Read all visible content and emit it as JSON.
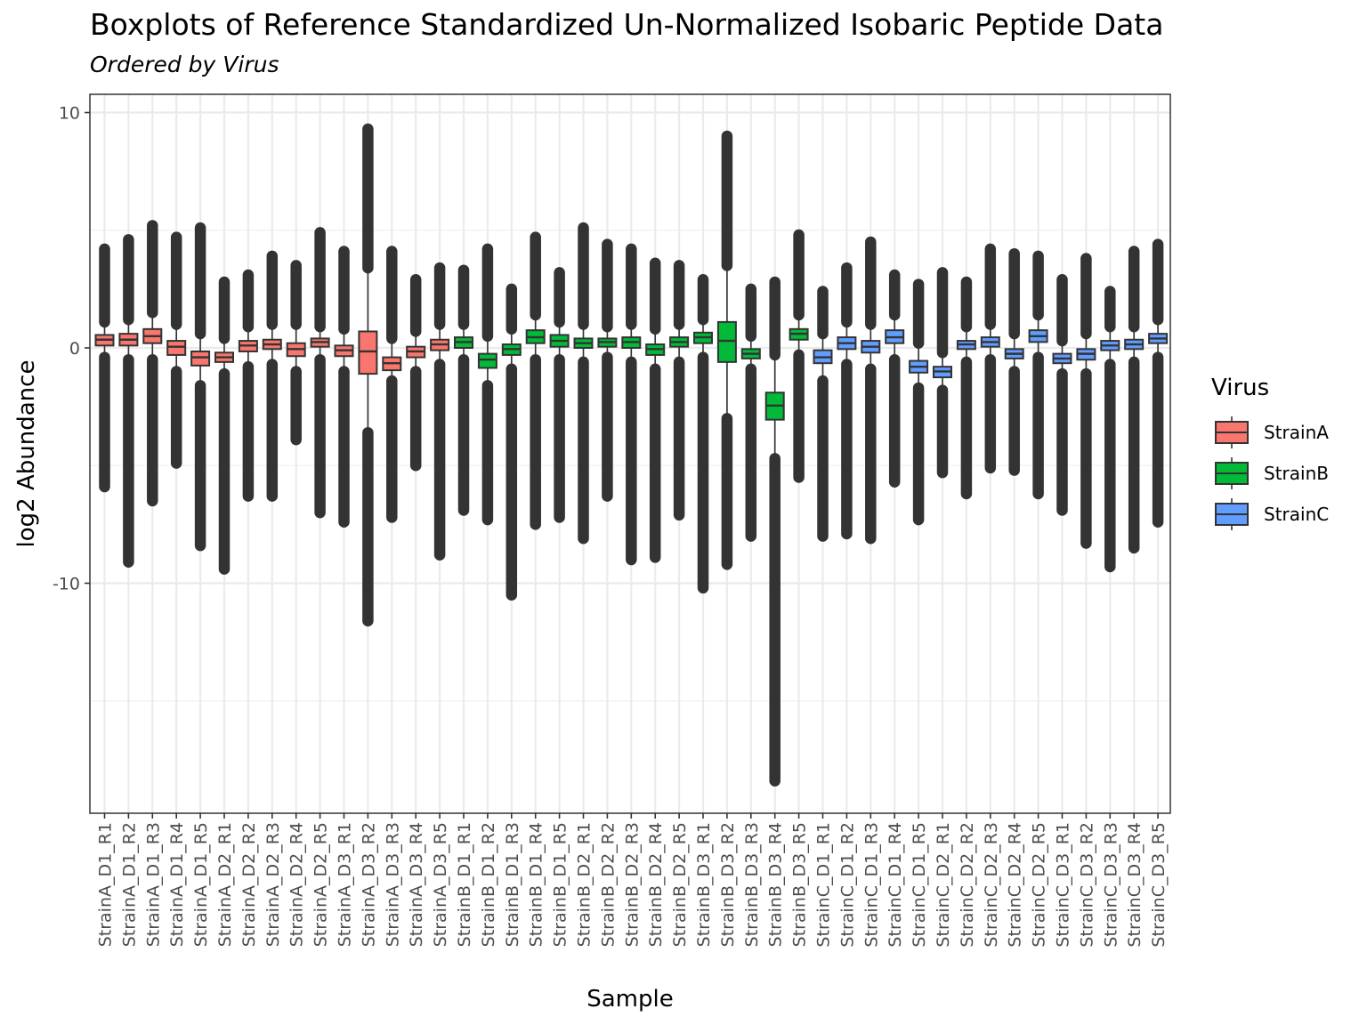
{
  "chart_data": {
    "type": "boxplot",
    "title": "Boxplots of Reference Standardized Un-Normalized Isobaric Peptide Data",
    "subtitle": "Ordered by  Virus",
    "xlabel": "Sample",
    "ylabel": "log2 Abundance",
    "ylim": [
      -19.5,
      10.7
    ],
    "y_ticks": [
      10,
      0,
      -10
    ],
    "y_tick_labels": [
      "10",
      "0",
      "-10"
    ],
    "grid": true,
    "legend": {
      "title": "Virus",
      "position": "right",
      "entries": [
        {
          "label": "StrainA",
          "color": "#F8766D"
        },
        {
          "label": "StrainB",
          "color": "#00BA38"
        },
        {
          "label": "StrainC",
          "color": "#619CFF"
        }
      ]
    },
    "groups": [
      {
        "sample": "StrainA_D1_R1",
        "virus": "StrainA",
        "q1": 0.1,
        "median": 0.35,
        "q3": 0.55,
        "whisker_low": -0.4,
        "whisker_high": 1.1,
        "min": -5.9,
        "max": 4.2
      },
      {
        "sample": "StrainA_D1_R2",
        "virus": "StrainA",
        "q1": 0.1,
        "median": 0.35,
        "q3": 0.6,
        "whisker_low": -0.5,
        "whisker_high": 1.2,
        "min": -9.1,
        "max": 4.6
      },
      {
        "sample": "StrainA_D1_R3",
        "virus": "StrainA",
        "q1": 0.2,
        "median": 0.5,
        "q3": 0.8,
        "whisker_low": -0.5,
        "whisker_high": 1.5,
        "min": -6.5,
        "max": 5.2
      },
      {
        "sample": "StrainA_D1_R4",
        "virus": "StrainA",
        "q1": -0.3,
        "median": 0.05,
        "q3": 0.3,
        "whisker_low": -1.0,
        "whisker_high": 1.0,
        "min": -4.9,
        "max": 4.7
      },
      {
        "sample": "StrainA_D1_R5",
        "virus": "StrainA",
        "q1": -0.75,
        "median": -0.4,
        "q3": -0.15,
        "whisker_low": -1.6,
        "whisker_high": 0.6,
        "min": -8.4,
        "max": 5.1
      },
      {
        "sample": "StrainA_D2_R1",
        "virus": "StrainA",
        "q1": -0.6,
        "median": -0.4,
        "q3": -0.2,
        "whisker_low": -1.1,
        "whisker_high": 0.4,
        "min": -9.4,
        "max": 2.8
      },
      {
        "sample": "StrainA_D2_R2",
        "virus": "StrainA",
        "q1": -0.15,
        "median": 0.1,
        "q3": 0.3,
        "whisker_low": -0.8,
        "whisker_high": 0.9,
        "min": -6.3,
        "max": 3.1
      },
      {
        "sample": "StrainA_D2_R3",
        "virus": "StrainA",
        "q1": -0.05,
        "median": 0.15,
        "q3": 0.35,
        "whisker_low": -0.7,
        "whisker_high": 1.0,
        "min": -6.3,
        "max": 3.9
      },
      {
        "sample": "StrainA_D2_R4",
        "virus": "StrainA",
        "q1": -0.35,
        "median": -0.05,
        "q3": 0.2,
        "whisker_low": -1.0,
        "whisker_high": 1.0,
        "min": -3.9,
        "max": 3.5
      },
      {
        "sample": "StrainA_D2_R5",
        "virus": "StrainA",
        "q1": 0.05,
        "median": 0.25,
        "q3": 0.4,
        "whisker_low": -0.5,
        "whisker_high": 0.9,
        "min": -7.0,
        "max": 4.9
      },
      {
        "sample": "StrainA_D3_R1",
        "virus": "StrainA",
        "q1": -0.35,
        "median": -0.1,
        "q3": 0.1,
        "whisker_low": -1.0,
        "whisker_high": 0.8,
        "min": -7.4,
        "max": 4.1
      },
      {
        "sample": "StrainA_D3_R2",
        "virus": "StrainA",
        "q1": -1.1,
        "median": -0.15,
        "q3": 0.7,
        "whisker_low": -3.6,
        "whisker_high": 3.4,
        "min": -11.6,
        "max": 9.3
      },
      {
        "sample": "StrainA_D3_R3",
        "virus": "StrainA",
        "q1": -0.95,
        "median": -0.65,
        "q3": -0.4,
        "whisker_low": -1.4,
        "whisker_high": 0.4,
        "min": -7.2,
        "max": 4.1
      },
      {
        "sample": "StrainA_D3_R4",
        "virus": "StrainA",
        "q1": -0.4,
        "median": -0.15,
        "q3": 0.05,
        "whisker_low": -1.0,
        "whisker_high": 0.7,
        "min": -5.0,
        "max": 2.9
      },
      {
        "sample": "StrainA_D3_R5",
        "virus": "StrainA",
        "q1": -0.1,
        "median": 0.15,
        "q3": 0.35,
        "whisker_low": -0.7,
        "whisker_high": 1.0,
        "min": -8.8,
        "max": 3.4
      },
      {
        "sample": "StrainB_D1_R1",
        "virus": "StrainB",
        "q1": 0.0,
        "median": 0.25,
        "q3": 0.45,
        "whisker_low": -0.5,
        "whisker_high": 1.0,
        "min": -6.9,
        "max": 3.3
      },
      {
        "sample": "StrainB_D1_R2",
        "virus": "StrainB",
        "q1": -0.85,
        "median": -0.5,
        "q3": -0.25,
        "whisker_low": -1.6,
        "whisker_high": 0.5,
        "min": -7.3,
        "max": 4.2
      },
      {
        "sample": "StrainB_D1_R3",
        "virus": "StrainB",
        "q1": -0.3,
        "median": -0.05,
        "q3": 0.15,
        "whisker_low": -0.9,
        "whisker_high": 0.8,
        "min": -10.5,
        "max": 2.5
      },
      {
        "sample": "StrainB_D1_R4",
        "virus": "StrainB",
        "q1": 0.2,
        "median": 0.45,
        "q3": 0.75,
        "whisker_low": -0.5,
        "whisker_high": 1.4,
        "min": -7.5,
        "max": 4.7
      },
      {
        "sample": "StrainB_D1_R5",
        "virus": "StrainB",
        "q1": 0.05,
        "median": 0.3,
        "q3": 0.55,
        "whisker_low": -0.5,
        "whisker_high": 1.1,
        "min": -7.2,
        "max": 3.2
      },
      {
        "sample": "StrainB_D2_R1",
        "virus": "StrainB",
        "q1": 0.0,
        "median": 0.2,
        "q3": 0.4,
        "whisker_low": -0.6,
        "whisker_high": 1.0,
        "min": -8.1,
        "max": 5.1
      },
      {
        "sample": "StrainB_D2_R2",
        "virus": "StrainB",
        "q1": 0.05,
        "median": 0.25,
        "q3": 0.4,
        "whisker_low": -0.4,
        "whisker_high": 0.9,
        "min": -6.3,
        "max": 4.4
      },
      {
        "sample": "StrainB_D2_R3",
        "virus": "StrainB",
        "q1": 0.0,
        "median": 0.25,
        "q3": 0.45,
        "whisker_low": -0.6,
        "whisker_high": 1.0,
        "min": -9.0,
        "max": 4.2
      },
      {
        "sample": "StrainB_D2_R4",
        "virus": "StrainB",
        "q1": -0.3,
        "median": -0.05,
        "q3": 0.15,
        "whisker_low": -0.9,
        "whisker_high": 0.8,
        "min": -8.9,
        "max": 3.6
      },
      {
        "sample": "StrainB_D2_R5",
        "virus": "StrainB",
        "q1": 0.05,
        "median": 0.25,
        "q3": 0.45,
        "whisker_low": -0.6,
        "whisker_high": 1.0,
        "min": -7.1,
        "max": 3.5
      },
      {
        "sample": "StrainB_D3_R1",
        "virus": "StrainB",
        "q1": 0.2,
        "median": 0.45,
        "q3": 0.65,
        "whisker_low": -0.4,
        "whisker_high": 1.2,
        "min": -10.2,
        "max": 2.9
      },
      {
        "sample": "StrainB_D3_R2",
        "virus": "StrainB",
        "q1": -0.6,
        "median": 0.3,
        "q3": 1.1,
        "whisker_low": -3.0,
        "whisker_high": 3.5,
        "min": -9.2,
        "max": 9.0
      },
      {
        "sample": "StrainB_D3_R3",
        "virus": "StrainB",
        "q1": -0.45,
        "median": -0.25,
        "q3": -0.05,
        "whisker_low": -0.9,
        "whisker_high": 0.5,
        "min": -8.0,
        "max": 2.5
      },
      {
        "sample": "StrainB_D3_R4",
        "virus": "StrainB",
        "q1": -3.05,
        "median": -2.45,
        "q3": -1.9,
        "whisker_low": -4.7,
        "whisker_high": -0.3,
        "min": -18.4,
        "max": 2.8
      },
      {
        "sample": "StrainB_D3_R5",
        "virus": "StrainB",
        "q1": 0.35,
        "median": 0.6,
        "q3": 0.8,
        "whisker_low": -0.3,
        "whisker_high": 1.4,
        "min": -5.5,
        "max": 4.8
      },
      {
        "sample": "StrainC_D1_R1",
        "virus": "StrainC",
        "q1": -0.65,
        "median": -0.4,
        "q3": -0.1,
        "whisker_low": -1.4,
        "whisker_high": 0.6,
        "min": -8.0,
        "max": 2.4
      },
      {
        "sample": "StrainC_D1_R2",
        "virus": "StrainC",
        "q1": -0.05,
        "median": 0.2,
        "q3": 0.45,
        "whisker_low": -0.7,
        "whisker_high": 1.1,
        "min": -7.9,
        "max": 3.4
      },
      {
        "sample": "StrainC_D1_R3",
        "virus": "StrainC",
        "q1": -0.2,
        "median": 0.05,
        "q3": 0.3,
        "whisker_low": -0.9,
        "whisker_high": 1.0,
        "min": -8.1,
        "max": 4.5
      },
      {
        "sample": "StrainC_D1_R4",
        "virus": "StrainC",
        "q1": 0.2,
        "median": 0.45,
        "q3": 0.75,
        "whisker_low": -0.5,
        "whisker_high": 1.4,
        "min": -5.7,
        "max": 3.1
      },
      {
        "sample": "StrainC_D1_R5",
        "virus": "StrainC",
        "q1": -1.05,
        "median": -0.8,
        "q3": -0.55,
        "whisker_low": -1.7,
        "whisker_high": 0.2,
        "min": -7.3,
        "max": 2.7
      },
      {
        "sample": "StrainC_D2_R1",
        "virus": "StrainC",
        "q1": -1.25,
        "median": -1.0,
        "q3": -0.8,
        "whisker_low": -1.8,
        "whisker_high": -0.2,
        "min": -5.3,
        "max": 3.2
      },
      {
        "sample": "StrainC_D2_R2",
        "virus": "StrainC",
        "q1": -0.05,
        "median": 0.15,
        "q3": 0.3,
        "whisker_low": -0.6,
        "whisker_high": 0.9,
        "min": -6.2,
        "max": 2.8
      },
      {
        "sample": "StrainC_D2_R3",
        "virus": "StrainC",
        "q1": 0.05,
        "median": 0.25,
        "q3": 0.45,
        "whisker_low": -0.5,
        "whisker_high": 1.0,
        "min": -5.1,
        "max": 4.2
      },
      {
        "sample": "StrainC_D2_R4",
        "virus": "StrainC",
        "q1": -0.45,
        "median": -0.25,
        "q3": -0.05,
        "whisker_low": -1.0,
        "whisker_high": 0.6,
        "min": -5.2,
        "max": 4.0
      },
      {
        "sample": "StrainC_D2_R5",
        "virus": "StrainC",
        "q1": 0.25,
        "median": 0.5,
        "q3": 0.75,
        "whisker_low": -0.4,
        "whisker_high": 1.4,
        "min": -6.2,
        "max": 3.9
      },
      {
        "sample": "StrainC_D3_R1",
        "virus": "StrainC",
        "q1": -0.65,
        "median": -0.45,
        "q3": -0.25,
        "whisker_low": -1.1,
        "whisker_high": 0.3,
        "min": -6.9,
        "max": 2.9
      },
      {
        "sample": "StrainC_D3_R2",
        "virus": "StrainC",
        "q1": -0.5,
        "median": -0.25,
        "q3": -0.05,
        "whisker_low": -1.1,
        "whisker_high": 0.6,
        "min": -8.3,
        "max": 3.8
      },
      {
        "sample": "StrainC_D3_R3",
        "virus": "StrainC",
        "q1": -0.1,
        "median": 0.1,
        "q3": 0.3,
        "whisker_low": -0.7,
        "whisker_high": 0.9,
        "min": -9.3,
        "max": 2.4
      },
      {
        "sample": "StrainC_D3_R4",
        "virus": "StrainC",
        "q1": -0.05,
        "median": 0.15,
        "q3": 0.35,
        "whisker_low": -0.6,
        "whisker_high": 0.9,
        "min": -8.5,
        "max": 4.1
      },
      {
        "sample": "StrainC_D3_R5",
        "virus": "StrainC",
        "q1": 0.2,
        "median": 0.4,
        "q3": 0.6,
        "whisker_low": -0.4,
        "whisker_high": 1.2,
        "min": -7.4,
        "max": 4.4
      }
    ]
  }
}
